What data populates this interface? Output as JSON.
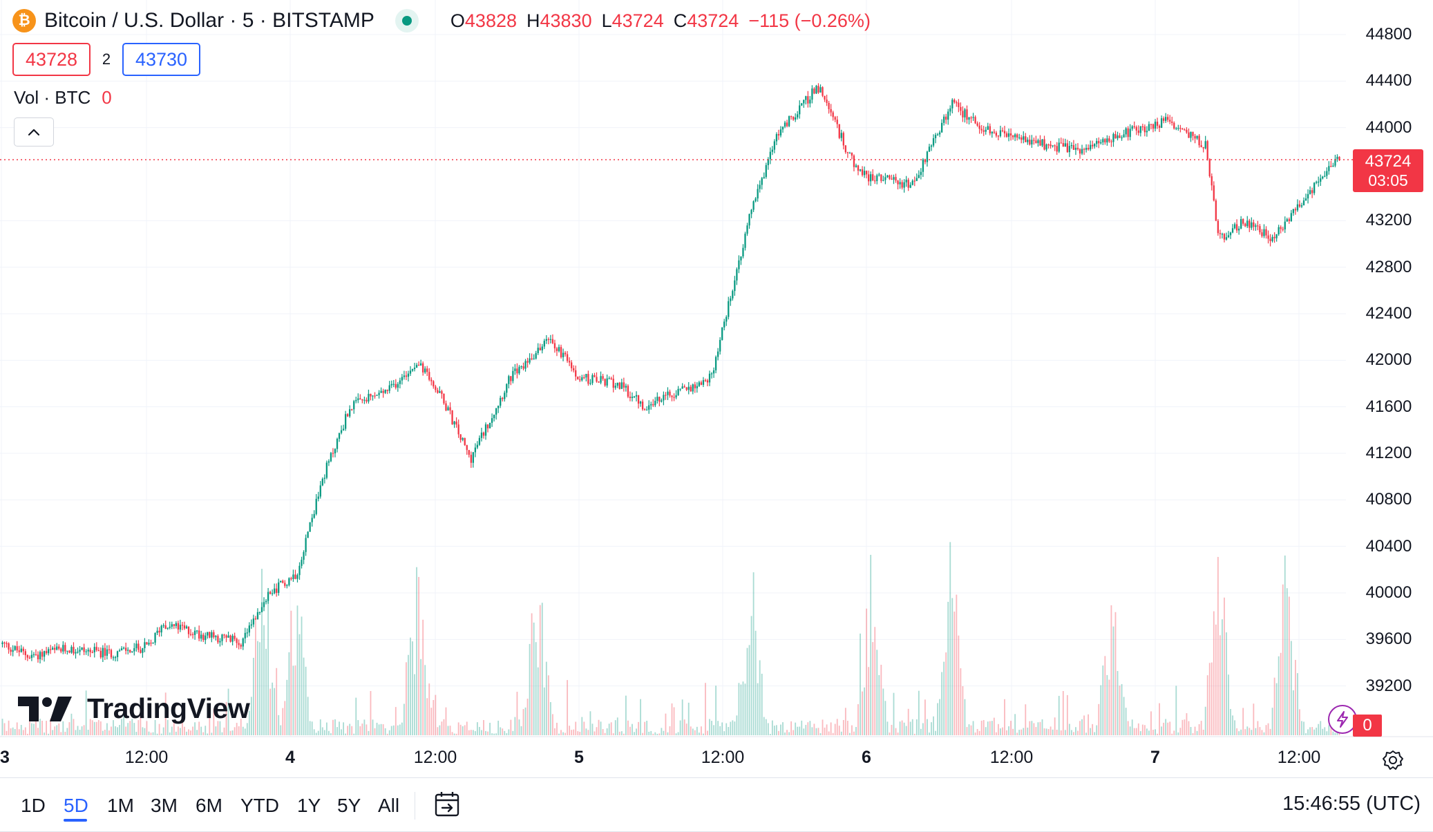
{
  "legend": {
    "coin_icon": "bitcoin-icon",
    "coin_glyph": "₿",
    "symbol": "Bitcoin / U.S. Dollar · 5 · BITSTAMP",
    "open_key": "O",
    "open": "43828",
    "high_key": "H",
    "high": "43830",
    "low_key": "L",
    "low": "43724",
    "close_key": "C",
    "close": "43724",
    "change": "−115 (−0.26%)"
  },
  "bidask": {
    "bid": "43728",
    "spread": "2",
    "ask": "43730"
  },
  "volume_legend": {
    "label": "Vol · BTC",
    "value": "0"
  },
  "logo": {
    "text": "TradingView"
  },
  "price_axis": {
    "ticks": [
      "44800",
      "44400",
      "44000",
      "43200",
      "42800",
      "42400",
      "42000",
      "41600",
      "41200",
      "40800",
      "40400",
      "40000",
      "39600",
      "39200"
    ],
    "last_price": "43724",
    "countdown": "03:05",
    "volume_value": "0"
  },
  "time_axis": {
    "ticks": [
      {
        "label": "3",
        "major": true
      },
      {
        "label": "12:00",
        "major": false
      },
      {
        "label": "4",
        "major": true
      },
      {
        "label": "12:00",
        "major": false
      },
      {
        "label": "5",
        "major": true
      },
      {
        "label": "12:00",
        "major": false
      },
      {
        "label": "6",
        "major": true
      },
      {
        "label": "12:00",
        "major": false
      },
      {
        "label": "7",
        "major": true
      },
      {
        "label": "12:00",
        "major": false
      }
    ]
  },
  "toolbar": {
    "ranges": [
      "1D",
      "5D",
      "1M",
      "3M",
      "6M",
      "YTD",
      "1Y",
      "5Y",
      "All"
    ],
    "active_range": "5D",
    "clock": "15:46:55 (UTC)"
  },
  "colors": {
    "up": "#089981",
    "down": "#f23645",
    "accent": "#2962ff",
    "bitcoin": "#f7931a"
  },
  "chart_data": {
    "type": "candlestick",
    "interval": "5m",
    "y_range": [
      38800,
      44800
    ],
    "last_price": 43724,
    "x_labels": [
      "3",
      "12:00",
      "4",
      "12:00",
      "5",
      "12:00",
      "6",
      "12:00",
      "7",
      "12:00"
    ],
    "price_path": [
      [
        0,
        39560
      ],
      [
        0.02,
        39460
      ],
      [
        0.05,
        39520
      ],
      [
        0.08,
        39480
      ],
      [
        0.11,
        39540
      ],
      [
        0.12,
        39740
      ],
      [
        0.15,
        39640
      ],
      [
        0.18,
        39580
      ],
      [
        0.2,
        40000
      ],
      [
        0.22,
        40170
      ],
      [
        0.24,
        41000
      ],
      [
        0.26,
        41600
      ],
      [
        0.29,
        41750
      ],
      [
        0.31,
        42000
      ],
      [
        0.33,
        41650
      ],
      [
        0.35,
        41150
      ],
      [
        0.38,
        41850
      ],
      [
        0.41,
        42200
      ],
      [
        0.43,
        41850
      ],
      [
        0.46,
        41800
      ],
      [
        0.48,
        41600
      ],
      [
        0.5,
        41700
      ],
      [
        0.53,
        41850
      ],
      [
        0.56,
        43300
      ],
      [
        0.58,
        43950
      ],
      [
        0.61,
        44350
      ],
      [
        0.64,
        43600
      ],
      [
        0.68,
        43500
      ],
      [
        0.71,
        44200
      ],
      [
        0.74,
        43950
      ],
      [
        0.78,
        43850
      ],
      [
        0.81,
        43800
      ],
      [
        0.84,
        43950
      ],
      [
        0.87,
        44050
      ],
      [
        0.9,
        43850
      ],
      [
        0.91,
        43050
      ],
      [
        0.93,
        43200
      ],
      [
        0.95,
        43050
      ],
      [
        0.97,
        43350
      ],
      [
        1.0,
        43724
      ]
    ],
    "volume_spikes": [
      0.195,
      0.22,
      0.31,
      0.4,
      0.56,
      0.65,
      0.71,
      0.83,
      0.91,
      0.96
    ]
  }
}
